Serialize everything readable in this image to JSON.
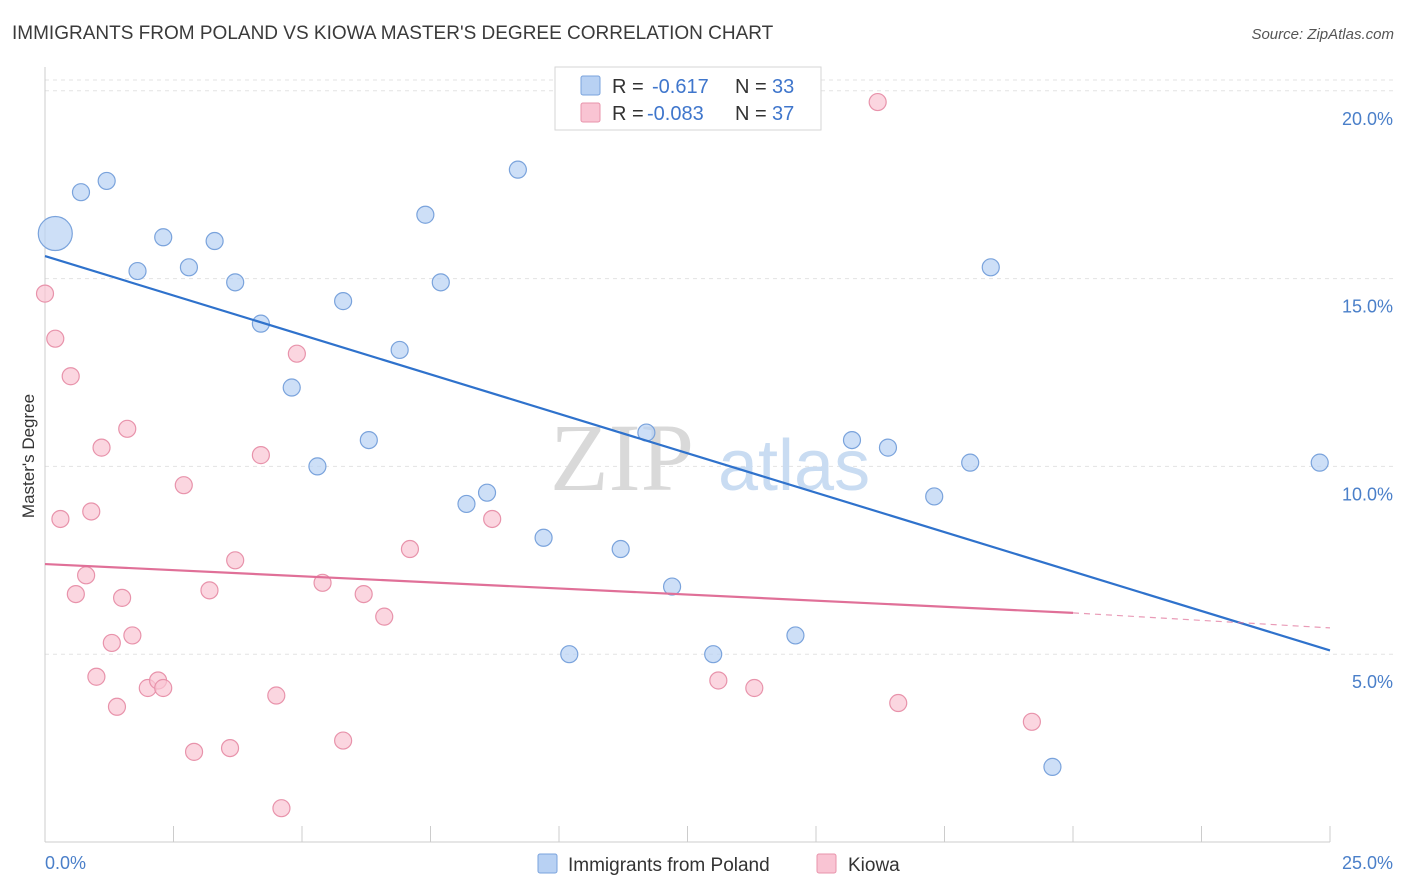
{
  "header": {
    "title": "IMMIGRANTS FROM POLAND VS KIOWA MASTER'S DEGREE CORRELATION CHART",
    "source": "Source: ZipAtlas.com"
  },
  "watermark": {
    "zip": "ZIP",
    "atlas": "atlas"
  },
  "legend_top": {
    "rows": [
      {
        "r_label": "R =",
        "r_value": "-0.617",
        "n_label": "N =",
        "n_value": "33",
        "color": "#b8d1f3",
        "stroke": "#7aa3dc"
      },
      {
        "r_label": "R =",
        "r_value": "-0.083",
        "n_label": "N =",
        "n_value": "37",
        "color": "#f9c4d3",
        "stroke": "#e893ab"
      }
    ]
  },
  "legend_bottom": [
    {
      "label": "Immigrants from Poland",
      "color": "#b8d1f3",
      "stroke": "#7aa3dc"
    },
    {
      "label": "Kiowa",
      "color": "#f9c4d3",
      "stroke": "#e893ab"
    }
  ],
  "chart_data": {
    "type": "scatter",
    "title": "IMMIGRANTS FROM POLAND VS KIOWA MASTER'S DEGREE CORRELATION CHART",
    "xlabel": "",
    "ylabel": "Master's Degree",
    "xlim": [
      0,
      25
    ],
    "ylim": [
      0,
      20.5
    ],
    "x_tick_labels": [
      "0.0%",
      "25.0%"
    ],
    "y_ticks": [
      5,
      10,
      15,
      20
    ],
    "y_tick_labels": [
      "5.0%",
      "10.0%",
      "15.0%",
      "20.0%"
    ],
    "grid": true,
    "legend_placement": "top-center",
    "series": [
      {
        "name": "Immigrants from Poland",
        "color": "#b8d1f3",
        "stroke": "#7aa3dc",
        "line_color": "#2f72cc",
        "trend": {
          "x": [
            0.0,
            25.0
          ],
          "y": [
            15.6,
            5.1
          ],
          "dashed_from": null
        },
        "points": [
          {
            "x": 0.2,
            "y": 16.2,
            "big": true
          },
          {
            "x": 0.7,
            "y": 17.3
          },
          {
            "x": 1.2,
            "y": 17.6
          },
          {
            "x": 1.8,
            "y": 15.2
          },
          {
            "x": 2.3,
            "y": 16.1
          },
          {
            "x": 2.8,
            "y": 15.3
          },
          {
            "x": 3.3,
            "y": 16.0
          },
          {
            "x": 3.7,
            "y": 14.9
          },
          {
            "x": 4.2,
            "y": 13.8
          },
          {
            "x": 4.8,
            "y": 12.1
          },
          {
            "x": 5.3,
            "y": 10.0
          },
          {
            "x": 5.8,
            "y": 14.4
          },
          {
            "x": 6.3,
            "y": 10.7
          },
          {
            "x": 6.9,
            "y": 13.1
          },
          {
            "x": 7.4,
            "y": 16.7
          },
          {
            "x": 7.7,
            "y": 14.9
          },
          {
            "x": 8.2,
            "y": 9.0
          },
          {
            "x": 8.6,
            "y": 9.3
          },
          {
            "x": 9.2,
            "y": 17.9
          },
          {
            "x": 9.7,
            "y": 8.1
          },
          {
            "x": 10.2,
            "y": 5.0
          },
          {
            "x": 11.2,
            "y": 7.8
          },
          {
            "x": 11.7,
            "y": 10.9
          },
          {
            "x": 12.2,
            "y": 6.8
          },
          {
            "x": 13.0,
            "y": 5.0
          },
          {
            "x": 14.6,
            "y": 5.5
          },
          {
            "x": 15.7,
            "y": 10.7
          },
          {
            "x": 16.4,
            "y": 10.5
          },
          {
            "x": 17.3,
            "y": 9.2
          },
          {
            "x": 18.0,
            "y": 10.1
          },
          {
            "x": 18.4,
            "y": 15.3
          },
          {
            "x": 19.6,
            "y": 2.0
          },
          {
            "x": 24.8,
            "y": 10.1
          }
        ]
      },
      {
        "name": "Kiowa",
        "color": "#f9c4d3",
        "stroke": "#e893ab",
        "line_color": "#e07098",
        "trend": {
          "x": [
            0.0,
            20.0
          ],
          "y": [
            7.4,
            6.1
          ],
          "dashed_to": [
            25.0,
            5.7
          ]
        },
        "points": [
          {
            "x": 0.0,
            "y": 14.6
          },
          {
            "x": 0.2,
            "y": 13.4
          },
          {
            "x": 0.3,
            "y": 8.6
          },
          {
            "x": 0.5,
            "y": 12.4
          },
          {
            "x": 0.6,
            "y": 6.6
          },
          {
            "x": 0.8,
            "y": 7.1
          },
          {
            "x": 0.9,
            "y": 8.8
          },
          {
            "x": 1.0,
            "y": 4.4
          },
          {
            "x": 1.1,
            "y": 10.5
          },
          {
            "x": 1.3,
            "y": 5.3
          },
          {
            "x": 1.4,
            "y": 3.6
          },
          {
            "x": 1.5,
            "y": 6.5
          },
          {
            "x": 1.6,
            "y": 11.0
          },
          {
            "x": 1.7,
            "y": 5.5
          },
          {
            "x": 2.0,
            "y": 4.1
          },
          {
            "x": 2.2,
            "y": 4.3
          },
          {
            "x": 2.3,
            "y": 4.1
          },
          {
            "x": 2.7,
            "y": 9.5
          },
          {
            "x": 2.9,
            "y": 2.4
          },
          {
            "x": 3.2,
            "y": 6.7
          },
          {
            "x": 3.6,
            "y": 2.5
          },
          {
            "x": 3.7,
            "y": 7.5
          },
          {
            "x": 4.2,
            "y": 10.3
          },
          {
            "x": 4.5,
            "y": 3.9
          },
          {
            "x": 4.6,
            "y": 0.9
          },
          {
            "x": 4.9,
            "y": 13.0
          },
          {
            "x": 5.4,
            "y": 6.9
          },
          {
            "x": 5.8,
            "y": 2.7
          },
          {
            "x": 6.2,
            "y": 6.6
          },
          {
            "x": 6.6,
            "y": 6.0
          },
          {
            "x": 7.1,
            "y": 7.8
          },
          {
            "x": 8.7,
            "y": 8.6
          },
          {
            "x": 13.1,
            "y": 4.3
          },
          {
            "x": 13.8,
            "y": 4.1
          },
          {
            "x": 16.2,
            "y": 19.7
          },
          {
            "x": 16.6,
            "y": 3.7
          },
          {
            "x": 19.2,
            "y": 3.2
          }
        ]
      }
    ]
  }
}
